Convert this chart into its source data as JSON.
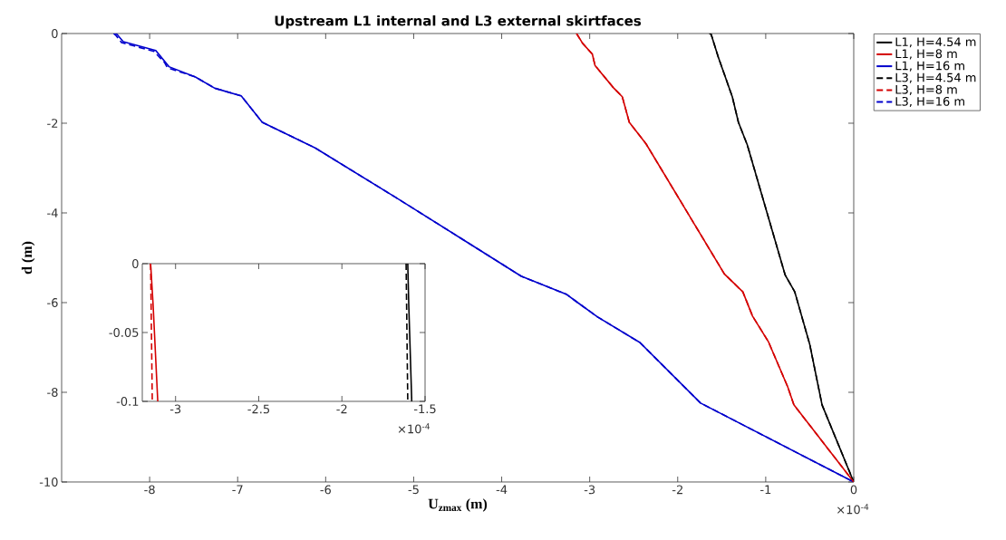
{
  "chart_data": [
    {
      "type": "line",
      "title": "Upstream L1 internal and L3 external skirtfaces",
      "xlabel": "U$_{zmax}$ (m)",
      "ylabel": "d (m)",
      "annotations": [
        "×10$^{-4}$"
      ],
      "xlim": [
        -9,
        0
      ],
      "ylim": [
        -10,
        0
      ],
      "xticks": [
        -8,
        -7,
        -6,
        -5,
        -4,
        -3,
        -2,
        -1,
        0
      ],
      "yticks": [
        -10,
        -8,
        -6,
        -4,
        -2,
        0
      ],
      "legend": "top right",
      "series": [
        {
          "name": "L1, H=4.54 m",
          "color": "#000000",
          "line_style": "solid",
          "x": [
            -1.63,
            -1.62,
            -1.54,
            -1.38,
            -1.31,
            -1.21,
            -0.78,
            -0.67,
            -0.5,
            -0.36,
            0
          ],
          "values": [
            0,
            -0.02,
            -0.52,
            -1.41,
            -1.98,
            -2.48,
            -5.38,
            -5.76,
            -6.93,
            -8.28,
            -10
          ]
        },
        {
          "name": "L1, H=8 m",
          "color": "#d40000",
          "line_style": "solid",
          "x": [
            -3.15,
            -3.14,
            -3.08,
            -2.97,
            -2.94,
            -2.73,
            -2.63,
            -2.55,
            -2.36,
            -1.47,
            -1.26,
            -1.15,
            -0.97,
            -0.75,
            -0.68,
            0
          ],
          "values": [
            0,
            -0.03,
            -0.22,
            -0.46,
            -0.71,
            -1.21,
            -1.41,
            -1.98,
            -2.46,
            -5.36,
            -5.76,
            -6.3,
            -6.87,
            -7.88,
            -8.28,
            -10
          ]
        },
        {
          "name": "L1, H=16 m",
          "color": "#0000cc",
          "line_style": "solid",
          "x": [
            -8.39,
            -8.37,
            -8.3,
            -7.93,
            -7.78,
            -7.48,
            -7.26,
            -6.96,
            -6.72,
            -6.12,
            -5.2,
            -4.46,
            -3.78,
            -3.26,
            -3.15,
            -2.91,
            -2.43,
            -1.74,
            0
          ],
          "values": [
            0,
            -0.02,
            -0.18,
            -0.38,
            -0.74,
            -0.97,
            -1.22,
            -1.39,
            -1.98,
            -2.55,
            -3.66,
            -4.57,
            -5.41,
            -5.82,
            -5.98,
            -6.32,
            -6.89,
            -8.24,
            -10
          ]
        },
        {
          "name": "L3, H=4.54 m",
          "color": "#000000",
          "line_style": "dashed",
          "x": [
            -1.64,
            -1.62,
            -1.54,
            -1.38,
            -1.31,
            -1.21,
            -0.78,
            -0.67,
            -0.5,
            -0.36,
            0
          ],
          "values": [
            0,
            -0.02,
            -0.52,
            -1.41,
            -1.98,
            -2.48,
            -5.38,
            -5.76,
            -6.93,
            -8.28,
            -10
          ]
        },
        {
          "name": "L3, H=8 m",
          "color": "#d40000",
          "line_style": "dashed",
          "x": [
            -3.15,
            -3.14,
            -3.08,
            -2.97,
            -2.94,
            -2.73,
            -2.63,
            -2.55,
            -2.36,
            -1.47,
            -1.26,
            -1.15,
            -0.97,
            -0.75,
            -0.68,
            0
          ],
          "values": [
            0,
            -0.03,
            -0.22,
            -0.46,
            -0.71,
            -1.21,
            -1.41,
            -1.98,
            -2.46,
            -5.36,
            -5.76,
            -6.3,
            -6.87,
            -7.88,
            -8.28,
            -10
          ]
        },
        {
          "name": "L3, H=16 m",
          "color": "#0000cc",
          "line_style": "dashed",
          "x": [
            -8.41,
            -8.38,
            -8.32,
            -7.95,
            -7.83,
            -7.8,
            -7.48,
            -7.26,
            -6.96,
            -6.72,
            -6.12,
            -5.2,
            -4.46,
            -3.78,
            -3.26,
            -3.15,
            -2.91,
            -2.43,
            -1.74,
            0
          ],
          "values": [
            0,
            -0.05,
            -0.2,
            -0.4,
            -0.65,
            -0.76,
            -0.97,
            -1.22,
            -1.39,
            -1.98,
            -2.55,
            -3.66,
            -4.57,
            -5.41,
            -5.82,
            -5.98,
            -6.32,
            -6.89,
            -8.24,
            -10
          ]
        }
      ]
    },
    {
      "type": "line",
      "annotations": [
        "×10$^{-4}$"
      ],
      "xlim": [
        -3.2,
        -1.5
      ],
      "ylim": [
        -0.1,
        0
      ],
      "xticks": [
        -3,
        -2.5,
        -2,
        -1.5
      ],
      "yticks": [
        -0.1,
        -0.05,
        0
      ],
      "series": [
        {
          "color": "#000000",
          "line_style": "solid",
          "x": [
            -1.604,
            -1.598,
            -1.58
          ],
          "values": [
            0,
            -0.03,
            -0.1
          ]
        },
        {
          "color": "#d40000",
          "line_style": "solid",
          "x": [
            -3.15,
            -3.135,
            -3.107
          ],
          "values": [
            0,
            -0.03,
            -0.1
          ]
        },
        {
          "color": "#000000",
          "line_style": "dashed",
          "x": [
            -1.614,
            -1.604
          ],
          "values": [
            0,
            -0.1
          ]
        },
        {
          "color": "#d40000",
          "line_style": "dashed",
          "x": [
            -3.15,
            -3.14
          ],
          "values": [
            0,
            -0.1
          ]
        }
      ]
    }
  ]
}
